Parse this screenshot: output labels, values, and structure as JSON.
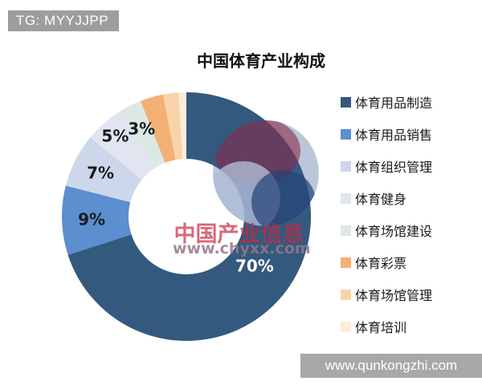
{
  "badge": {
    "text": "TG: MYYJJPP"
  },
  "watermark": {
    "line1": "中国产业信息",
    "line2": "www.chyxx.com"
  },
  "footer": {
    "text": "www.qunkongzhi.com"
  },
  "chart_data": {
    "type": "pie",
    "subtype": "donut",
    "title": "中国体育产业构成",
    "categories": [
      "体育用品制造",
      "体育用品销售",
      "体育组织管理",
      "体育健身",
      "体育场馆建设",
      "体育彩票",
      "体育场馆管理",
      "体育培训"
    ],
    "values": [
      70,
      9,
      7,
      5,
      3,
      3,
      2,
      1
    ],
    "slice_labels": [
      "70%",
      "9%",
      "7%",
      "5%",
      "3%",
      "",
      "",
      ""
    ],
    "colors": [
      "#33597f",
      "#5b8fd0",
      "#ccd7ec",
      "#e0e5ef",
      "#dce8e6",
      "#f3b074",
      "#f8d3aa",
      "#fcecda"
    ],
    "label_colors": [
      "#ffffff",
      "#1a1a1a",
      "#1a1a1a",
      "#1a1a1a",
      "#1a1a1a",
      "",
      "",
      ""
    ],
    "start_angle": "top",
    "direction": "clockwise",
    "legend_position": "right"
  }
}
